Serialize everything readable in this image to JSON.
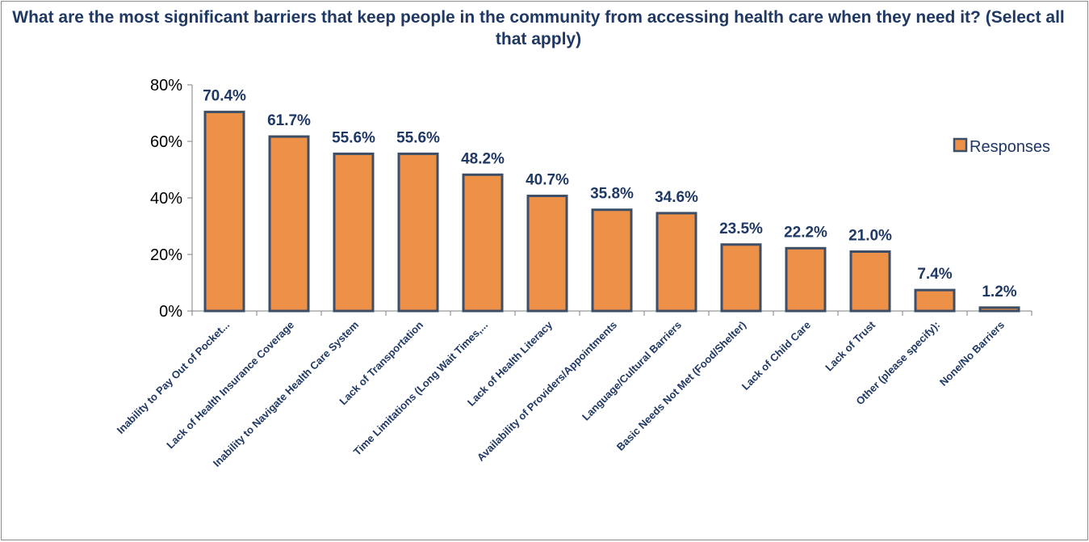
{
  "chart_data": {
    "type": "bar",
    "title": "What are the most significant barriers that keep people in the community from accessing health care when they need it? (Select all that apply)",
    "categories": [
      "Inability to Pay Out of Pocket...",
      "Lack of Health Insurance Coverage",
      "Inability to Navigate Health Care System",
      "Lack of Transportation",
      "Time Limitations (Long Wait Times,...",
      "Lack of Health Literacy",
      "Availability of Providers/Appointments",
      "Language/Cultural Barriers",
      "Basic Needs Not Met (Food/Shelter)",
      "Lack of Child Care",
      "Lack of Trust",
      "Other (please specify):",
      "None/No Barriers"
    ],
    "series": [
      {
        "name": "Responses",
        "values": [
          70.4,
          61.7,
          55.6,
          55.6,
          48.2,
          40.7,
          35.8,
          34.6,
          23.5,
          22.2,
          21.0,
          7.4,
          1.2
        ]
      }
    ],
    "data_labels": [
      "70.4%",
      "61.7%",
      "55.6%",
      "55.6%",
      "48.2%",
      "40.7%",
      "35.8%",
      "34.6%",
      "23.5%",
      "22.2%",
      "21.0%",
      "7.4%",
      "1.2%"
    ],
    "y_ticks": [
      0,
      20,
      40,
      60,
      80
    ],
    "y_tick_labels": [
      "0%",
      "20%",
      "40%",
      "60%",
      "80%"
    ],
    "ylim": [
      0,
      80
    ],
    "xlabel": "",
    "ylabel": "",
    "grid": false,
    "legend": "right",
    "colors": {
      "bar_fill": "#ed9148",
      "bar_stroke": "#3d4f66",
      "text": "#1f3864",
      "axis": "#7f7f7f"
    }
  }
}
